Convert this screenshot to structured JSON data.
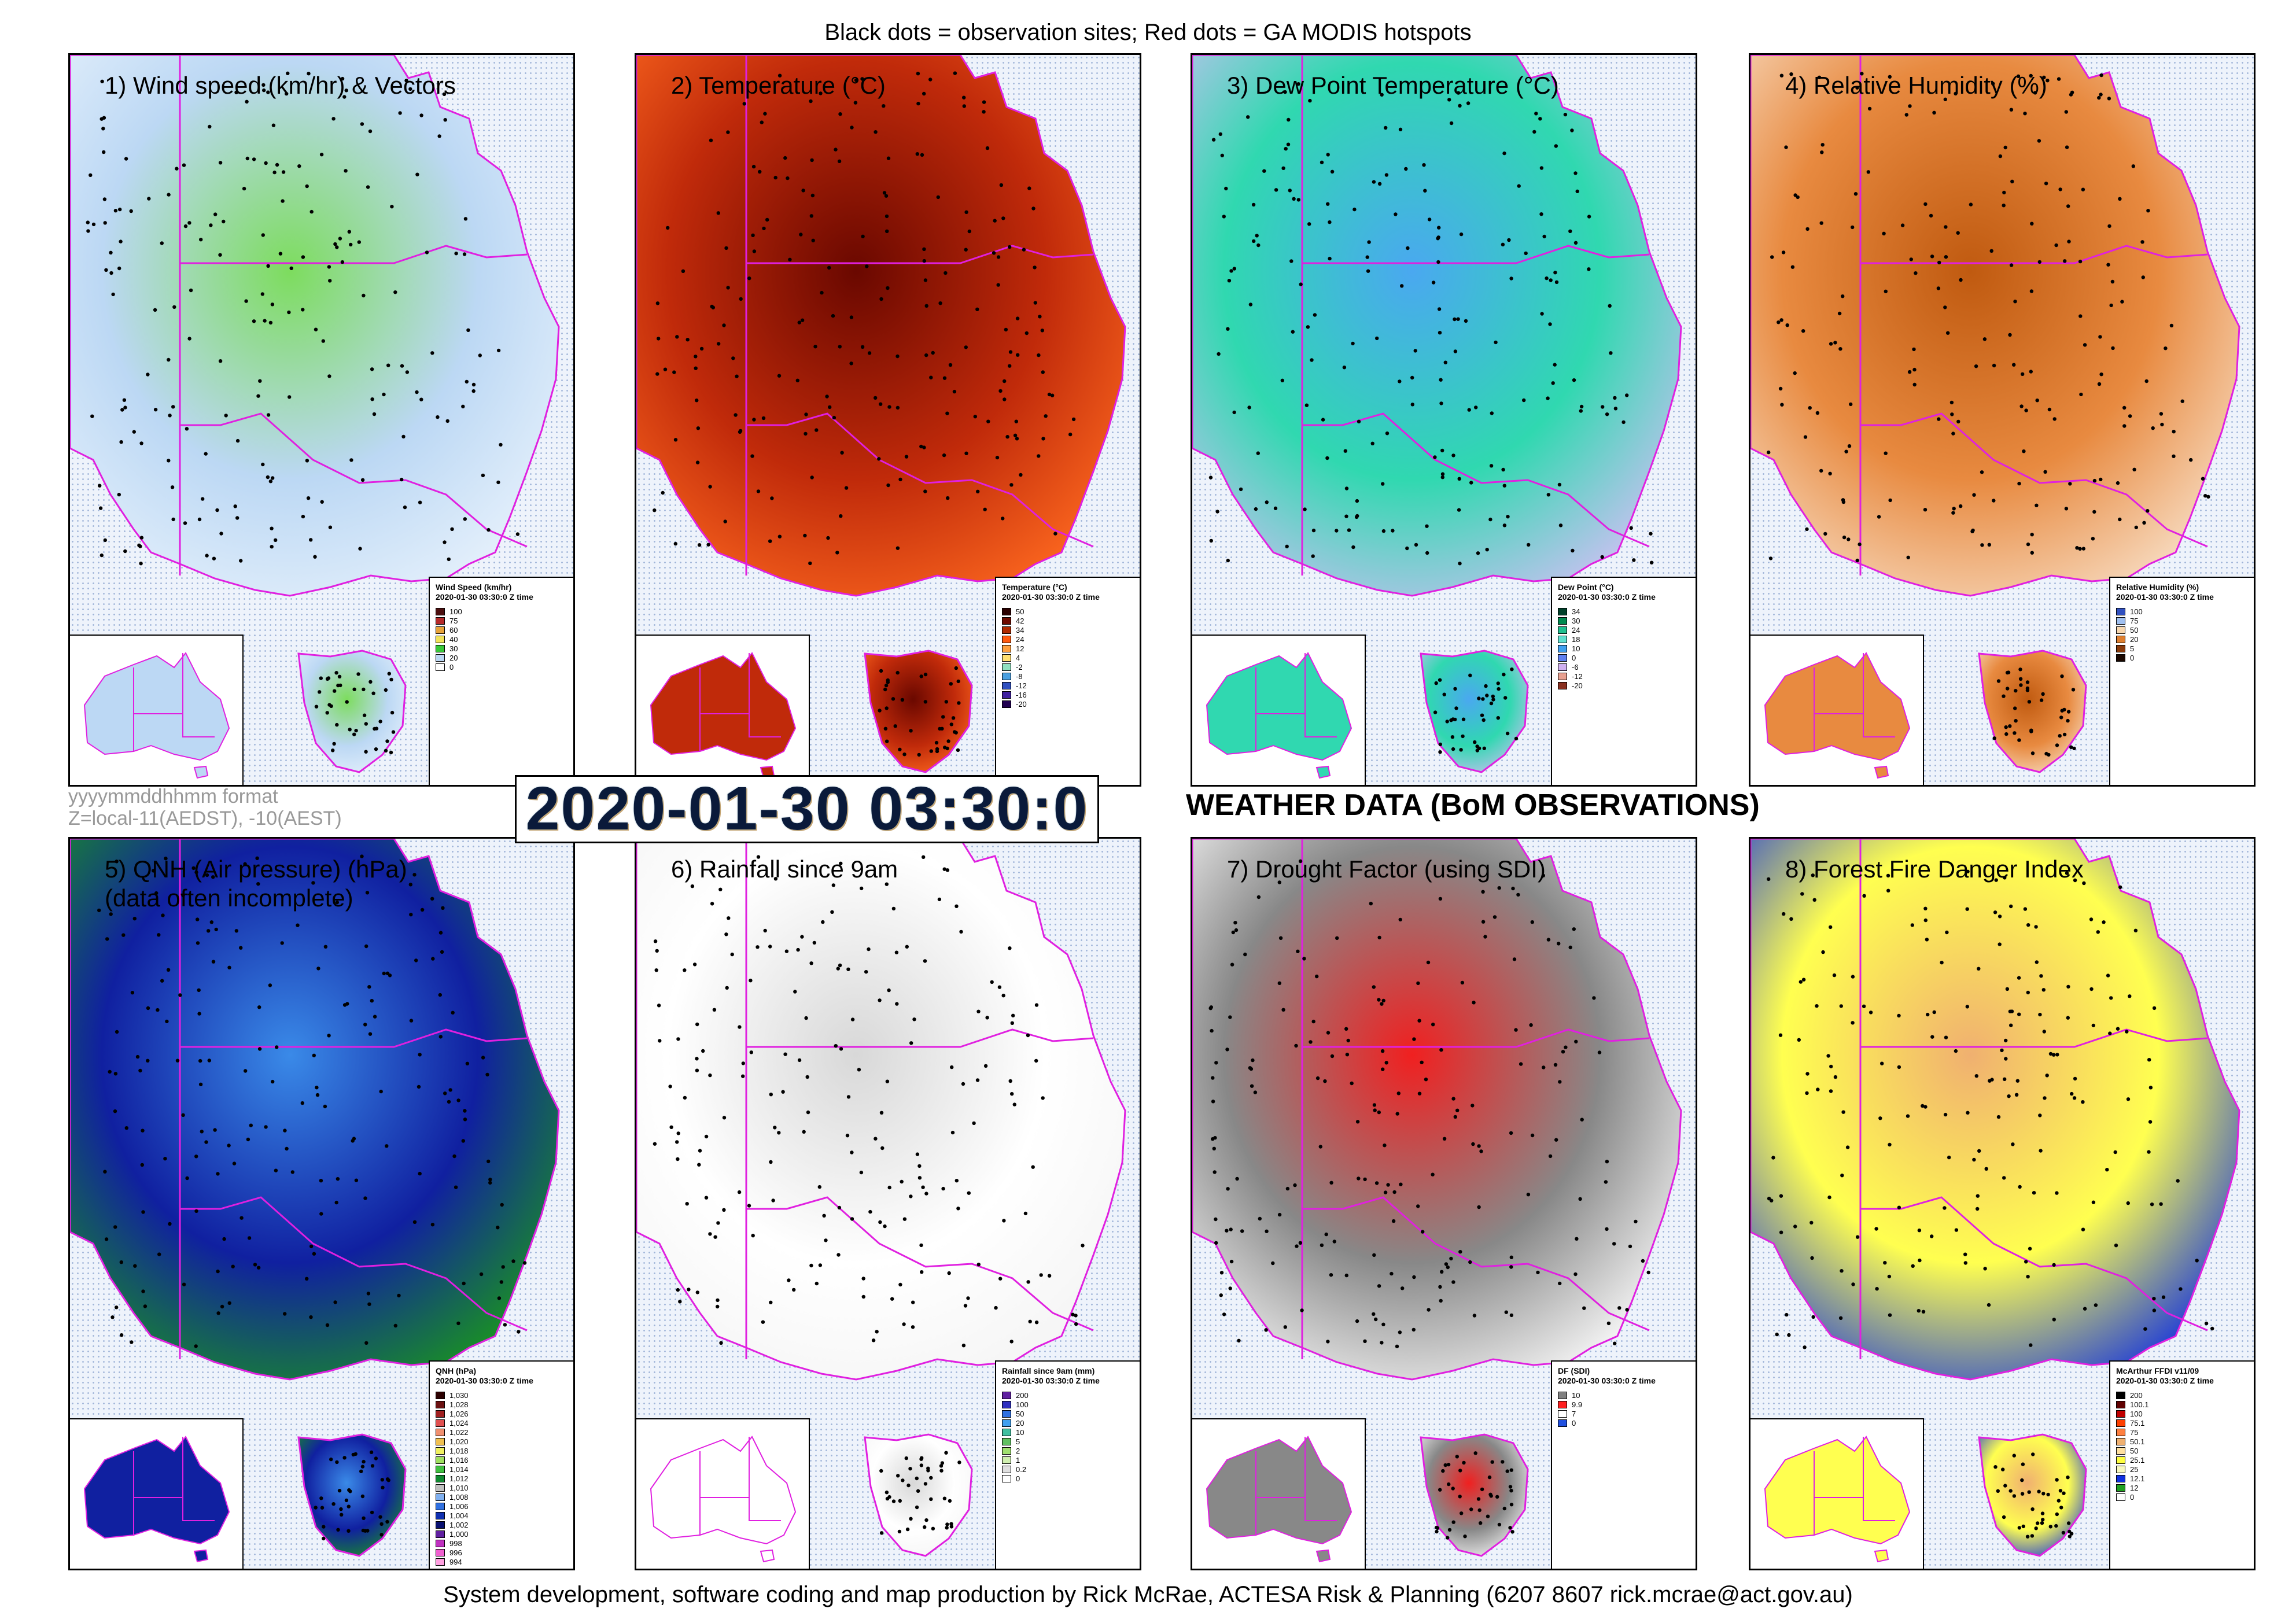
{
  "header": {
    "note": "Black dots = observation sites; Red dots = GA MODIS hotspots"
  },
  "footer": {
    "text": "System development, software coding and map production by Rick McRae, ACTESA Risk & Planning (6207 8607 rick.mcrae@act.gov.au)"
  },
  "datestamp": "2020-01-30 03:30:0",
  "format_note": {
    "line1": "yyyymmddhhmm format",
    "line2": "Z=local-11(AEDST), -10(AEST)"
  },
  "main_title": "WEATHER DATA (BoM OBSERVATIONS)",
  "panels": [
    {
      "title": "1) Wind speed (km/hr) & Vectors",
      "title2": "",
      "legend": {
        "title": "Wind Speed (km/hr)",
        "date": "2020-01-30 03:30:0 Z time",
        "values": [
          "100",
          "75",
          "60",
          "40",
          "30",
          "20",
          "0"
        ],
        "colors": [
          "#4b0f0f",
          "#b52a2a",
          "#e8a33a",
          "#f2e35a",
          "#38c838",
          "#bcd8f4",
          "#ffffff"
        ]
      },
      "colors": {
        "a": "#bcd8f4",
        "b": "#7ddc5e",
        "c": "#e8f2fc"
      }
    },
    {
      "title": "2) Temperature (°C)",
      "title2": "",
      "legend": {
        "title": "Temperature (°C)",
        "date": "2020-01-30 03:30:0 Z time",
        "values": [
          "50",
          "42",
          "34",
          "24",
          "12",
          "4",
          "-2",
          "-8",
          "-12",
          "-16",
          "-20"
        ],
        "colors": [
          "#2a0000",
          "#6e0a00",
          "#b02a00",
          "#ff5a10",
          "#ffa040",
          "#ffe070",
          "#8fe0c0",
          "#4aa0e0",
          "#3050c0",
          "#4020a0",
          "#200050"
        ]
      },
      "colors": {
        "a": "#c02a0a",
        "b": "#6a0800",
        "c": "#ff6a20"
      }
    },
    {
      "title": "3) Dew Point Temperature (°C)",
      "title2": "",
      "legend": {
        "title": "Dew Point (°C)",
        "date": "2020-01-30 03:30:0 Z time",
        "values": [
          "34",
          "30",
          "24",
          "18",
          "10",
          "0",
          "-6",
          "-12",
          "-20"
        ],
        "colors": [
          "#00402a",
          "#008a50",
          "#20c090",
          "#60e0d0",
          "#40a0f0",
          "#6080f0",
          "#d0b0f0",
          "#e8a090",
          "#8a3020"
        ]
      },
      "colors": {
        "a": "#30d8b0",
        "b": "#4aa8f0",
        "c": "#d0c0f4"
      }
    },
    {
      "title": "4) Relative Humidity (%)",
      "title2": "",
      "legend": {
        "title": "Relative Humidity (%)",
        "date": "2020-01-30 03:30:0 Z time",
        "values": [
          "100",
          "75",
          "50",
          "20",
          "5",
          "0"
        ],
        "colors": [
          "#3050c0",
          "#a0c0f0",
          "#f8d8b0",
          "#e08030",
          "#8a3a0a",
          "#1a0800"
        ]
      },
      "colors": {
        "a": "#e88a40",
        "b": "#c05a10",
        "c": "#f8e0c8"
      }
    },
    {
      "title": "5) QNH (Air pressure) (hPa)",
      "title2": "(data often incomplete)",
      "legend": {
        "title": "QNH (hPa)",
        "date": "2020-01-30 03:30:0 Z time",
        "values": [
          "1,030",
          "1,028",
          "1,026",
          "1,024",
          "1,022",
          "1,020",
          "1,018",
          "1,016",
          "1,014",
          "1,012",
          "1,010",
          "1,008",
          "1,006",
          "1,004",
          "1,002",
          "1,000",
          "998",
          "996",
          "994"
        ],
        "colors": [
          "#2a0000",
          "#6a1010",
          "#a02020",
          "#e05050",
          "#f09070",
          "#f0c050",
          "#f0f060",
          "#a0e060",
          "#40c040",
          "#108a30",
          "#c0c0c0",
          "#80b0f0",
          "#3070e0",
          "#1030b0",
          "#081070",
          "#6020a0",
          "#c030c0",
          "#f060d0",
          "#ffa0e0"
        ]
      },
      "colors": {
        "a": "#1020a0",
        "b": "#3a8ae8",
        "c": "#1a9a1a"
      }
    },
    {
      "title": "6) Rainfall since 9am",
      "title2": "",
      "legend": {
        "title": "Rainfall since 9am (mm)",
        "date": "2020-01-30 03:30:0 Z time",
        "values": [
          "200",
          "100",
          "50",
          "20",
          "10",
          "5",
          "2",
          "1",
          "0.2",
          "0"
        ],
        "colors": [
          "#6020a0",
          "#3030c0",
          "#3070e0",
          "#40a0f0",
          "#40c0a0",
          "#60c060",
          "#a0e070",
          "#d0f0b0",
          "#e0e0e0",
          "#ffffff"
        ]
      },
      "colors": {
        "a": "#ffffff",
        "b": "#d8d8d8",
        "c": "#f4f4f4"
      }
    },
    {
      "title": "7) Drought Factor (using SDI)",
      "title2": "",
      "legend": {
        "title": "DF (SDI)",
        "date": "2020-01-30 03:30:0 Z time",
        "values": [
          "10",
          "9.9",
          "7",
          "0"
        ],
        "colors": [
          "#808080",
          "#ff2020",
          "#ffffff",
          "#2050e0"
        ]
      },
      "colors": {
        "a": "#888888",
        "b": "#f02020",
        "c": "#ffffff"
      }
    },
    {
      "title": "8) Forest Fire Danger Index",
      "title2": "",
      "legend": {
        "title": "McArthur FFDI v11/09",
        "date": "2020-01-30 03:30:0 Z time",
        "values": [
          "200",
          "100.1",
          "100",
          "75.1",
          "75",
          "50.1",
          "50",
          "25.1",
          "25",
          "12.1",
          "12",
          "0"
        ],
        "colors": [
          "#000000",
          "#600000",
          "#c00000",
          "#ff4000",
          "#ff8040",
          "#f0b070",
          "#ffe0a0",
          "#ffff40",
          "#f8f8c0",
          "#1030e0",
          "#20a020",
          "#ffffff"
        ]
      },
      "colors": {
        "a": "#ffff50",
        "b": "#f0b070",
        "c": "#1030e0"
      }
    }
  ]
}
